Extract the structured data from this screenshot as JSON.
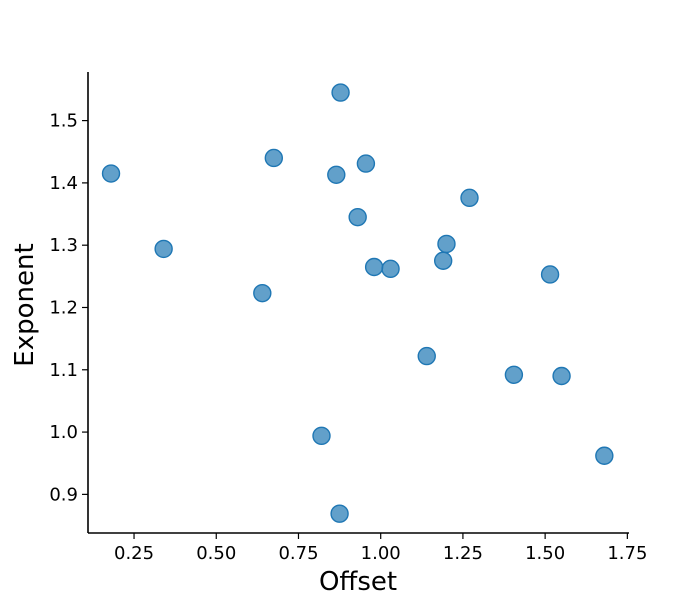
{
  "chart_data": {
    "type": "scatter",
    "title": "",
    "xlabel": "Offset",
    "ylabel": "Exponent",
    "xlim": [
      0.11,
      1.755
    ],
    "ylim": [
      0.838,
      1.578
    ],
    "xticks": [
      0.25,
      0.5,
      0.75,
      1.0,
      1.25,
      1.5,
      1.75
    ],
    "xtick_labels": [
      "0.25",
      "0.50",
      "0.75",
      "1.00",
      "1.25",
      "1.50",
      "1.75"
    ],
    "yticks": [
      0.9,
      1.0,
      1.1,
      1.2,
      1.3,
      1.4,
      1.5
    ],
    "ytick_labels": [
      "0.9",
      "1.0",
      "1.1",
      "1.2",
      "1.3",
      "1.4",
      "1.5"
    ],
    "grid": false,
    "color": "#1f77b4",
    "points": [
      {
        "x": 0.18,
        "y": 1.415
      },
      {
        "x": 0.34,
        "y": 1.294
      },
      {
        "x": 0.64,
        "y": 1.223
      },
      {
        "x": 0.675,
        "y": 1.44
      },
      {
        "x": 0.82,
        "y": 0.994
      },
      {
        "x": 0.865,
        "y": 1.413
      },
      {
        "x": 0.875,
        "y": 0.869
      },
      {
        "x": 0.878,
        "y": 1.545
      },
      {
        "x": 0.93,
        "y": 1.345
      },
      {
        "x": 0.955,
        "y": 1.431
      },
      {
        "x": 0.98,
        "y": 1.265
      },
      {
        "x": 1.03,
        "y": 1.262
      },
      {
        "x": 1.14,
        "y": 1.122
      },
      {
        "x": 1.19,
        "y": 1.275
      },
      {
        "x": 1.2,
        "y": 1.302
      },
      {
        "x": 1.27,
        "y": 1.376
      },
      {
        "x": 1.405,
        "y": 1.092
      },
      {
        "x": 1.515,
        "y": 1.253
      },
      {
        "x": 1.55,
        "y": 1.09
      },
      {
        "x": 1.68,
        "y": 0.962
      }
    ]
  }
}
